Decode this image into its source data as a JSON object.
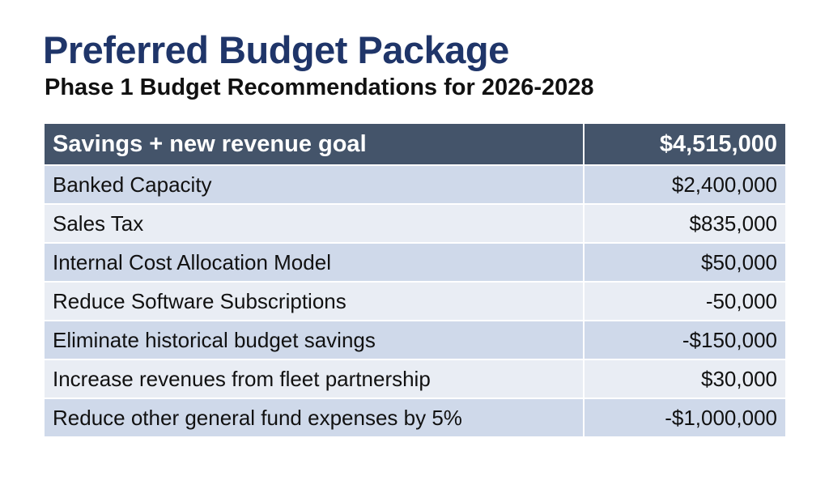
{
  "title": "Preferred Budget Package",
  "subtitle": "Phase 1 Budget Recommendations for 2026-2028",
  "table": {
    "header": {
      "label": "Savings + new revenue goal",
      "amount": "$4,515,000"
    },
    "rows": [
      {
        "label": "Banked Capacity",
        "amount": "$2,400,000"
      },
      {
        "label": "Sales Tax",
        "amount": "$835,000"
      },
      {
        "label": "Internal Cost Allocation Model",
        "amount": "$50,000"
      },
      {
        "label": "Reduce Software Subscriptions",
        "amount": "-50,000"
      },
      {
        "label": "Eliminate historical budget savings",
        "amount": "-$150,000"
      },
      {
        "label": "Increase revenues from fleet partnership",
        "amount": "$30,000"
      },
      {
        "label": "Reduce other general fund expenses by 5%",
        "amount": "-$1,000,000"
      }
    ]
  },
  "colors": {
    "title": "#1f3569",
    "header_bg": "#44546a",
    "row_dark": "#cfd9ea",
    "row_light": "#e9edf4"
  }
}
